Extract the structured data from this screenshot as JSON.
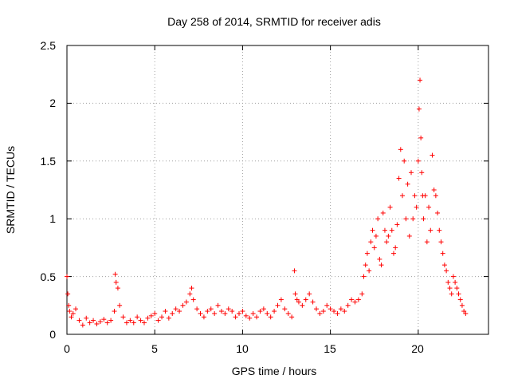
{
  "chart_data": {
    "type": "scatter",
    "title": "Day 258 of 2014, SRMTID for receiver adis",
    "xlabel": "GPS time / hours",
    "ylabel": "SRMTID / TECUs",
    "xlim": [
      0,
      24
    ],
    "ylim": [
      0,
      2.5
    ],
    "xticks": [
      0,
      5,
      10,
      15,
      20
    ],
    "xtick_labels": [
      "0",
      "5",
      "10",
      "15",
      "20"
    ],
    "yticks": [
      0,
      0.5,
      1,
      1.5,
      2,
      2.5
    ],
    "ytick_labels": [
      "0",
      "0.5",
      "1",
      "1.5",
      "2",
      "2.5"
    ],
    "grid": true,
    "marker": "plus",
    "color": "#ff0000",
    "series": [
      {
        "name": "SRMTID",
        "x": [
          0.0,
          0.05,
          0.1,
          0.15,
          0.25,
          0.35,
          0.5,
          0.7,
          0.9,
          1.1,
          1.3,
          1.5,
          1.7,
          1.9,
          2.1,
          2.3,
          2.5,
          2.7,
          2.75,
          2.8,
          2.9,
          3.0,
          3.2,
          3.4,
          3.6,
          3.8,
          4.0,
          4.2,
          4.4,
          4.6,
          4.8,
          5.0,
          5.2,
          5.4,
          5.6,
          5.8,
          6.0,
          6.2,
          6.4,
          6.6,
          6.8,
          7.0,
          7.1,
          7.2,
          7.4,
          7.6,
          7.8,
          8.0,
          8.2,
          8.4,
          8.6,
          8.8,
          9.0,
          9.2,
          9.4,
          9.6,
          9.8,
          10.0,
          10.2,
          10.4,
          10.6,
          10.8,
          11.0,
          11.2,
          11.4,
          11.6,
          11.8,
          12.0,
          12.2,
          12.4,
          12.6,
          12.8,
          12.95,
          13.0,
          13.1,
          13.2,
          13.4,
          13.6,
          13.8,
          14.0,
          14.2,
          14.4,
          14.6,
          14.8,
          15.0,
          15.2,
          15.4,
          15.6,
          15.8,
          16.0,
          16.2,
          16.4,
          16.6,
          16.8,
          16.9,
          17.0,
          17.1,
          17.2,
          17.3,
          17.4,
          17.5,
          17.6,
          17.7,
          17.8,
          17.9,
          18.0,
          18.1,
          18.2,
          18.3,
          18.4,
          18.5,
          18.6,
          18.7,
          18.8,
          18.9,
          19.0,
          19.1,
          19.2,
          19.3,
          19.4,
          19.5,
          19.6,
          19.7,
          19.8,
          19.9,
          20.0,
          20.05,
          20.1,
          20.15,
          20.2,
          20.25,
          20.3,
          20.4,
          20.5,
          20.6,
          20.7,
          20.8,
          20.9,
          21.0,
          21.1,
          21.2,
          21.3,
          21.4,
          21.5,
          21.6,
          21.7,
          21.8,
          21.9,
          22.0,
          22.1,
          22.2,
          22.3,
          22.4,
          22.5,
          22.6,
          22.7
        ],
        "y": [
          0.5,
          0.35,
          0.25,
          0.2,
          0.15,
          0.18,
          0.22,
          0.12,
          0.08,
          0.14,
          0.1,
          0.12,
          0.09,
          0.11,
          0.13,
          0.1,
          0.12,
          0.2,
          0.52,
          0.45,
          0.4,
          0.25,
          0.15,
          0.1,
          0.12,
          0.1,
          0.15,
          0.12,
          0.1,
          0.14,
          0.16,
          0.18,
          0.12,
          0.15,
          0.2,
          0.14,
          0.18,
          0.22,
          0.2,
          0.25,
          0.28,
          0.35,
          0.4,
          0.3,
          0.22,
          0.18,
          0.15,
          0.2,
          0.22,
          0.18,
          0.25,
          0.2,
          0.18,
          0.22,
          0.2,
          0.15,
          0.18,
          0.2,
          0.16,
          0.14,
          0.18,
          0.15,
          0.2,
          0.22,
          0.18,
          0.15,
          0.2,
          0.25,
          0.3,
          0.22,
          0.18,
          0.15,
          0.55,
          0.35,
          0.3,
          0.28,
          0.25,
          0.3,
          0.35,
          0.28,
          0.22,
          0.18,
          0.2,
          0.25,
          0.22,
          0.2,
          0.18,
          0.22,
          0.2,
          0.25,
          0.3,
          0.28,
          0.3,
          0.35,
          0.5,
          0.6,
          0.7,
          0.55,
          0.8,
          0.9,
          0.75,
          0.85,
          1.0,
          0.65,
          0.6,
          1.05,
          0.9,
          0.8,
          0.85,
          1.1,
          0.9,
          0.7,
          0.75,
          0.95,
          1.35,
          1.6,
          1.2,
          1.5,
          1.0,
          1.3,
          0.85,
          1.4,
          1.0,
          1.2,
          1.1,
          1.5,
          1.95,
          2.2,
          1.7,
          1.4,
          1.2,
          1.0,
          1.2,
          0.8,
          1.1,
          0.9,
          1.55,
          1.25,
          1.2,
          1.05,
          0.9,
          0.8,
          0.7,
          0.6,
          0.55,
          0.45,
          0.4,
          0.35,
          0.5,
          0.45,
          0.4,
          0.35,
          0.3,
          0.25,
          0.2,
          0.18
        ]
      }
    ]
  }
}
